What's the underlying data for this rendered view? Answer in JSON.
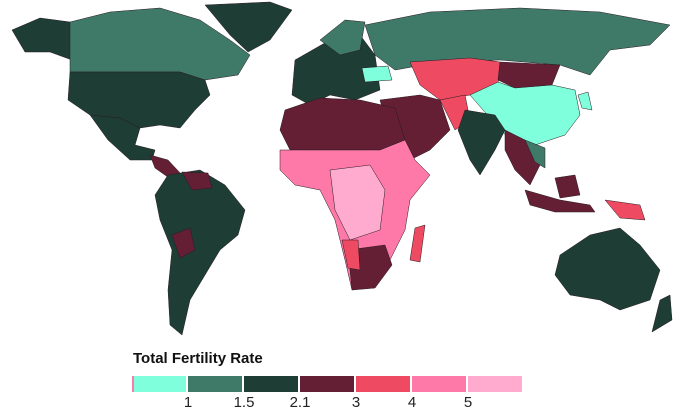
{
  "legend": {
    "title": "Total Fertility Rate",
    "colors": [
      "#7fffdc",
      "#3f7a68",
      "#1d3d35",
      "#641f35",
      "#ee4a62",
      "#ff79a8",
      "#ffabd0"
    ],
    "ticks": [
      "1",
      "1.5",
      "2.1",
      "3",
      "4",
      "5"
    ]
  }
}
